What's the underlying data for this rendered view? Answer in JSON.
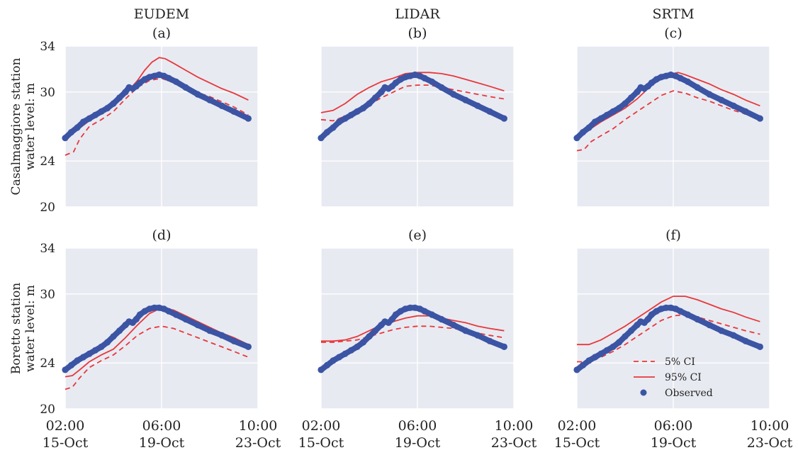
{
  "chart_data": {
    "type": "line",
    "columns": [
      "EUDEM",
      "LIDAR",
      "SRTM"
    ],
    "rows": [
      {
        "label_line1": "Casalmaggiore station",
        "label_line2": "water level: m"
      },
      {
        "label_line1": "Boretto station",
        "label_line2": "water level: m"
      }
    ],
    "y_ticks": [
      "20",
      "24",
      "30",
      "34"
    ],
    "ylim": [
      20,
      34
    ],
    "x_ticks": [
      {
        "t": 0,
        "line1": "02:00",
        "line2": "15-Oct"
      },
      {
        "t": 4,
        "line1": "06:00",
        "line2": "19-Oct"
      },
      {
        "t": 8,
        "line1": "10:00",
        "line2": "23-Oct"
      }
    ],
    "xlim": [
      0,
      8
    ],
    "grid": true,
    "legend": {
      "placement": "lower-right",
      "panel": "f",
      "entries": [
        {
          "series": "5% CI",
          "label": "5% CI"
        },
        {
          "series": "95% CI",
          "label": "95% CI"
        },
        {
          "series": "Observed",
          "label": "Observed"
        }
      ]
    },
    "colors": {
      "background": "#e8eaf2",
      "ci": "#e8383a",
      "observed": "#3b54a4",
      "grid": "#ffffff"
    },
    "panels": [
      {
        "id": "a",
        "letter": "(a)",
        "row": 0,
        "col": 0,
        "series": [
          {
            "name": "5% CI",
            "style": "dashed",
            "x": [
              0,
              0.35,
              0.6,
              1,
              1.5,
              2,
              2.5,
              3,
              3.5,
              4,
              4.5,
              5,
              6,
              7,
              7.6
            ],
            "y": [
              24.5,
              24.8,
              25.9,
              27.0,
              27.6,
              28.3,
              29.4,
              30.4,
              31.0,
              31.2,
              30.8,
              30.3,
              29.6,
              28.7,
              28.0
            ]
          },
          {
            "name": "95% CI",
            "style": "solid",
            "x": [
              0,
              0.5,
              1,
              1.5,
              2,
              2.5,
              3,
              3.3,
              3.6,
              3.9,
              4.15,
              4.5,
              5,
              5.5,
              6,
              6.5,
              7,
              7.6
            ],
            "y": [
              26.0,
              26.7,
              27.5,
              28.1,
              28.8,
              29.8,
              31.0,
              31.9,
              32.6,
              33.0,
              32.9,
              32.5,
              31.9,
              31.3,
              30.8,
              30.3,
              29.9,
              29.3
            ]
          },
          {
            "name": "Observed",
            "style": "markers",
            "x": [
              0,
              0.25,
              0.5,
              0.75,
              1,
              1.25,
              1.5,
              1.75,
              2,
              2.25,
              2.5,
              2.65,
              2.8,
              2.95,
              3.1,
              3.3,
              3.5,
              3.7,
              3.9,
              4.1,
              4.3,
              4.6,
              5,
              5.5,
              6,
              6.5,
              7,
              7.6
            ],
            "y": [
              26.0,
              26.5,
              26.9,
              27.4,
              27.7,
              28.0,
              28.3,
              28.6,
              29.0,
              29.5,
              30.0,
              30.4,
              30.3,
              30.5,
              30.8,
              31.1,
              31.3,
              31.4,
              31.5,
              31.4,
              31.2,
              30.9,
              30.4,
              29.8,
              29.3,
              28.8,
              28.3,
              27.7
            ]
          }
        ]
      },
      {
        "id": "b",
        "letter": "(b)",
        "row": 0,
        "col": 1,
        "series": [
          {
            "name": "5% CI",
            "style": "dashed",
            "x": [
              0,
              0.5,
              1,
              1.5,
              2,
              2.5,
              3,
              3.5,
              4,
              4.5,
              5,
              5.5,
              6,
              6.5,
              7,
              7.6
            ],
            "y": [
              27.6,
              27.5,
              27.9,
              28.3,
              28.9,
              29.5,
              30.0,
              30.5,
              30.6,
              30.6,
              30.4,
              30.2,
              30.0,
              29.8,
              29.6,
              29.4
            ]
          },
          {
            "name": "95% CI",
            "style": "solid",
            "x": [
              0,
              0.5,
              1,
              1.5,
              2,
              2.5,
              3,
              3.5,
              4,
              4.5,
              5,
              5.5,
              6,
              6.5,
              7,
              7.6
            ],
            "y": [
              28.2,
              28.4,
              29.0,
              29.8,
              30.4,
              30.9,
              31.2,
              31.6,
              31.7,
              31.7,
              31.6,
              31.4,
              31.1,
              30.8,
              30.5,
              30.1
            ]
          },
          {
            "name": "Observed",
            "style": "markers",
            "x": [
              0,
              0.25,
              0.5,
              0.75,
              1,
              1.25,
              1.5,
              1.75,
              2,
              2.25,
              2.5,
              2.65,
              2.8,
              2.95,
              3.1,
              3.3,
              3.5,
              3.7,
              3.9,
              4.1,
              4.3,
              4.6,
              5,
              5.5,
              6,
              6.5,
              7,
              7.6
            ],
            "y": [
              26.0,
              26.5,
              26.9,
              27.4,
              27.7,
              28.0,
              28.3,
              28.6,
              29.0,
              29.5,
              30.0,
              30.4,
              30.3,
              30.5,
              30.8,
              31.1,
              31.3,
              31.4,
              31.5,
              31.4,
              31.2,
              30.9,
              30.4,
              29.8,
              29.3,
              28.8,
              28.3,
              27.7
            ]
          }
        ]
      },
      {
        "id": "c",
        "letter": "(c)",
        "row": 0,
        "col": 2,
        "series": [
          {
            "name": "5% CI",
            "style": "dashed",
            "x": [
              0,
              0.3,
              0.6,
              1,
              1.5,
              2,
              2.5,
              3,
              3.5,
              4,
              4.5,
              5,
              5.5,
              6,
              6.5,
              7,
              7.6
            ],
            "y": [
              24.9,
              25.0,
              25.7,
              26.2,
              26.8,
              27.6,
              28.3,
              29.0,
              29.7,
              30.1,
              29.9,
              29.5,
              29.2,
              28.8,
              28.4,
              28.1,
              27.6
            ]
          },
          {
            "name": "95% CI",
            "style": "solid",
            "x": [
              0,
              0.5,
              1,
              1.5,
              2,
              2.5,
              3,
              3.5,
              4,
              4.2,
              4.5,
              5,
              5.5,
              6,
              6.5,
              7,
              7.6
            ],
            "y": [
              26.2,
              26.7,
              27.4,
              28.0,
              28.6,
              29.4,
              30.4,
              31.2,
              31.6,
              31.7,
              31.5,
              31.1,
              30.7,
              30.2,
              29.8,
              29.3,
              28.8
            ]
          },
          {
            "name": "Observed",
            "style": "markers",
            "x": [
              0,
              0.25,
              0.5,
              0.75,
              1,
              1.25,
              1.5,
              1.75,
              2,
              2.25,
              2.5,
              2.65,
              2.8,
              2.95,
              3.1,
              3.3,
              3.5,
              3.7,
              3.9,
              4.1,
              4.3,
              4.6,
              5,
              5.5,
              6,
              6.5,
              7,
              7.6
            ],
            "y": [
              26.0,
              26.5,
              26.9,
              27.4,
              27.7,
              28.0,
              28.3,
              28.6,
              29.0,
              29.5,
              30.0,
              30.4,
              30.3,
              30.5,
              30.8,
              31.1,
              31.3,
              31.4,
              31.5,
              31.4,
              31.2,
              30.9,
              30.4,
              29.8,
              29.3,
              28.8,
              28.3,
              27.7
            ]
          }
        ]
      },
      {
        "id": "d",
        "letter": "(d)",
        "row": 1,
        "col": 0,
        "series": [
          {
            "name": "5% CI",
            "style": "dashed",
            "x": [
              0,
              0.3,
              0.6,
              1,
              1.5,
              2,
              2.5,
              3,
              3.5,
              4,
              4.5,
              5,
              5.5,
              6,
              6.5,
              7,
              7.6
            ],
            "y": [
              21.7,
              21.9,
              22.7,
              23.6,
              24.2,
              24.7,
              25.5,
              26.4,
              27.0,
              27.2,
              27.0,
              26.6,
              26.2,
              25.8,
              25.4,
              25.0,
              24.5
            ]
          },
          {
            "name": "95% CI",
            "style": "solid",
            "x": [
              0,
              0.3,
              0.6,
              1,
              1.5,
              2,
              2.5,
              3,
              3.5,
              4,
              4.5,
              5,
              5.5,
              6,
              6.5,
              7,
              7.6
            ],
            "y": [
              22.8,
              22.9,
              23.4,
              24.1,
              24.7,
              25.2,
              26.2,
              27.3,
              28.3,
              28.8,
              28.6,
              28.1,
              27.6,
              27.1,
              26.6,
              26.2,
              25.6
            ]
          },
          {
            "name": "Observed",
            "style": "markers",
            "x": [
              0,
              0.25,
              0.5,
              0.75,
              1,
              1.25,
              1.5,
              1.75,
              2,
              2.25,
              2.5,
              2.65,
              2.8,
              2.95,
              3.1,
              3.3,
              3.5,
              3.7,
              3.9,
              4.1,
              4.3,
              4.6,
              5,
              5.5,
              6,
              6.5,
              7,
              7.6
            ],
            "y": [
              23.4,
              23.8,
              24.2,
              24.5,
              24.8,
              25.1,
              25.4,
              25.8,
              26.3,
              26.8,
              27.3,
              27.6,
              27.5,
              27.8,
              28.2,
              28.5,
              28.7,
              28.8,
              28.8,
              28.7,
              28.5,
              28.2,
              27.8,
              27.3,
              26.8,
              26.4,
              25.9,
              25.4
            ]
          }
        ]
      },
      {
        "id": "e",
        "letter": "(e)",
        "row": 1,
        "col": 1,
        "series": [
          {
            "name": "5% CI",
            "style": "dashed",
            "x": [
              0,
              0.5,
              1,
              1.5,
              2,
              2.5,
              3,
              3.5,
              4,
              4.5,
              5,
              5.5,
              6,
              6.5,
              7,
              7.6
            ],
            "y": [
              25.8,
              25.8,
              25.9,
              26.0,
              26.3,
              26.6,
              26.9,
              27.1,
              27.2,
              27.2,
              27.1,
              27.0,
              26.8,
              26.6,
              26.4,
              26.2
            ]
          },
          {
            "name": "95% CI",
            "style": "solid",
            "x": [
              0,
              0.5,
              1,
              1.5,
              2,
              2.5,
              3,
              3.5,
              4,
              4.5,
              5,
              5.5,
              6,
              6.5,
              7,
              7.6
            ],
            "y": [
              25.9,
              25.9,
              26.0,
              26.3,
              26.8,
              27.3,
              27.6,
              27.9,
              28.1,
              28.1,
              27.9,
              27.7,
              27.5,
              27.2,
              27.0,
              26.8
            ]
          },
          {
            "name": "Observed",
            "style": "markers",
            "x": [
              0,
              0.25,
              0.5,
              0.75,
              1,
              1.25,
              1.5,
              1.75,
              2,
              2.25,
              2.5,
              2.65,
              2.8,
              2.95,
              3.1,
              3.3,
              3.5,
              3.7,
              3.9,
              4.1,
              4.3,
              4.6,
              5,
              5.5,
              6,
              6.5,
              7,
              7.6
            ],
            "y": [
              23.4,
              23.8,
              24.2,
              24.5,
              24.8,
              25.1,
              25.4,
              25.8,
              26.3,
              26.8,
              27.3,
              27.6,
              27.5,
              27.8,
              28.2,
              28.5,
              28.7,
              28.8,
              28.8,
              28.7,
              28.5,
              28.2,
              27.8,
              27.3,
              26.8,
              26.4,
              25.9,
              25.4
            ]
          }
        ]
      },
      {
        "id": "f",
        "letter": "(f)",
        "row": 1,
        "col": 2,
        "series": [
          {
            "name": "5% CI",
            "style": "dashed",
            "x": [
              0,
              0.5,
              1,
              1.5,
              2,
              2.5,
              3,
              3.5,
              4,
              4.5,
              5,
              5.5,
              6,
              6.5,
              7,
              7.6
            ],
            "y": [
              24.1,
              24.1,
              24.5,
              25.0,
              25.6,
              26.3,
              27.0,
              27.7,
              28.1,
              28.2,
              28.0,
              27.7,
              27.4,
              27.1,
              26.8,
              26.5
            ]
          },
          {
            "name": "95% CI",
            "style": "solid",
            "x": [
              0,
              0.5,
              1,
              1.5,
              2,
              2.5,
              3,
              3.5,
              4,
              4.5,
              5,
              5.5,
              6,
              6.5,
              7,
              7.6
            ],
            "y": [
              25.6,
              25.6,
              26.0,
              26.6,
              27.2,
              27.9,
              28.6,
              29.3,
              29.8,
              29.8,
              29.5,
              29.1,
              28.7,
              28.4,
              28.0,
              27.6
            ]
          },
          {
            "name": "Observed",
            "style": "markers",
            "x": [
              0,
              0.25,
              0.5,
              0.75,
              1,
              1.25,
              1.5,
              1.75,
              2,
              2.25,
              2.5,
              2.65,
              2.8,
              2.95,
              3.1,
              3.3,
              3.5,
              3.7,
              3.9,
              4.1,
              4.3,
              4.6,
              5,
              5.5,
              6,
              6.5,
              7,
              7.6
            ],
            "y": [
              23.4,
              23.8,
              24.2,
              24.5,
              24.8,
              25.1,
              25.4,
              25.8,
              26.3,
              26.8,
              27.3,
              27.6,
              27.5,
              27.8,
              28.2,
              28.5,
              28.7,
              28.8,
              28.8,
              28.7,
              28.5,
              28.2,
              27.8,
              27.3,
              26.8,
              26.4,
              25.9,
              25.4
            ]
          }
        ]
      }
    ]
  }
}
